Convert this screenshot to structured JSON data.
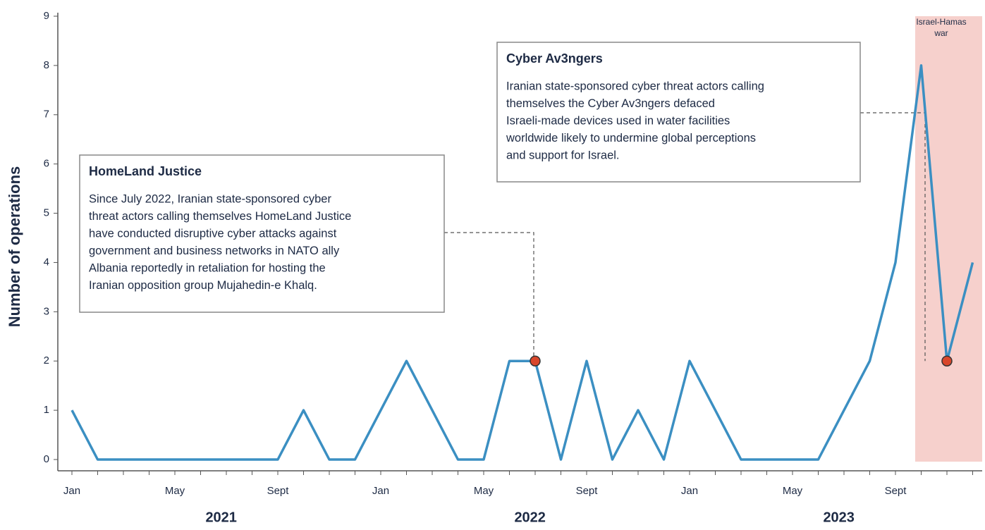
{
  "chart_data": {
    "type": "line",
    "y_label": "Number of operations",
    "categories": [
      "Jan",
      null,
      null,
      null,
      "May",
      null,
      null,
      null,
      "Sept",
      null,
      null,
      null,
      "Jan",
      null,
      null,
      null,
      "May",
      null,
      null,
      null,
      "Sept",
      null,
      null,
      null,
      "Jan",
      null,
      null,
      null,
      "May",
      null,
      null,
      null,
      "Sept",
      null,
      null,
      null
    ],
    "years": [
      "2021",
      "2022",
      "2023"
    ],
    "values": [
      1,
      0,
      0,
      0,
      0,
      0,
      0,
      0,
      0,
      1,
      0,
      0,
      1,
      2,
      1,
      0,
      0,
      2,
      2,
      0,
      2,
      0,
      1,
      0,
      2,
      1,
      0,
      0,
      0,
      0,
      1,
      2,
      4,
      8,
      2,
      4
    ],
    "color": "#3b8fc2",
    "ylim": [
      0,
      9
    ],
    "yticks": [
      0,
      1,
      2,
      3,
      4,
      5,
      6,
      7,
      8,
      9
    ],
    "highlight": {
      "label": [
        "Israel-Hamas",
        "war"
      ],
      "color": "#f6d0cc"
    },
    "annotations": [
      {
        "title": "HomeLand Justice",
        "point": 18,
        "text": [
          "Since July 2022, Iranian state-sponsored cyber",
          "threat actors calling themselves HomeLand Justice",
          "have conducted disruptive cyber attacks against",
          "government and business networks in NATO ally",
          "Albania reportedly in retaliation for hosting the",
          "Iranian opposition group Mujahedin-e Khalq."
        ]
      },
      {
        "title": "Cyber Av3ngers",
        "point": 34,
        "text": [
          "Iranian state-sponsored cyber threat actors calling",
          "themselves the Cyber Av3ngers defaced",
          "Israeli-made devices used in water facilities",
          "worldwide likely to undermine global perceptions",
          "and support for Israel."
        ]
      }
    ]
  }
}
